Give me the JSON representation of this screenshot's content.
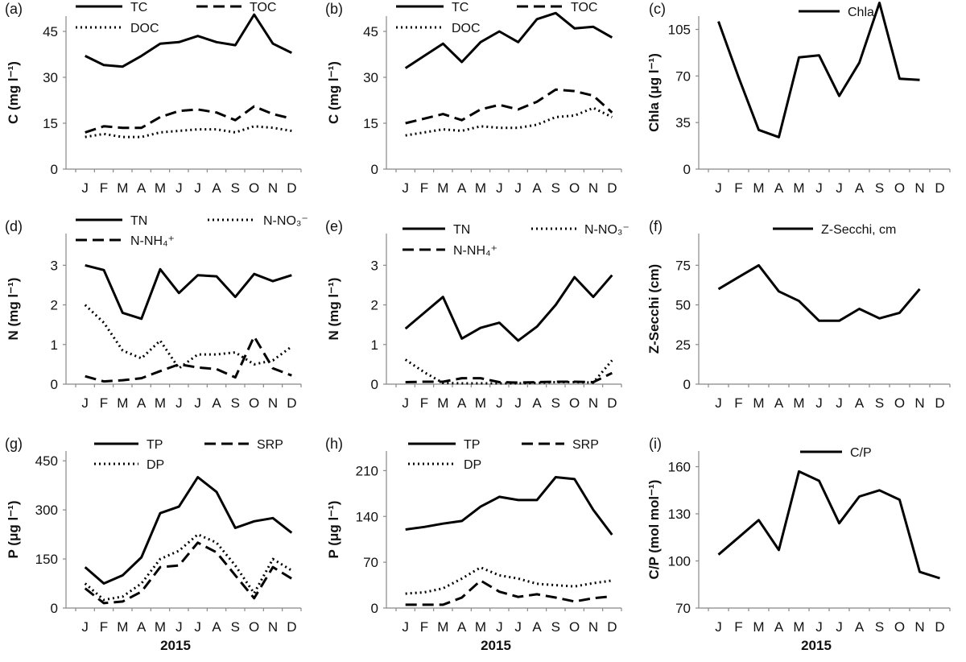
{
  "chart_data": [
    {
      "type": "line",
      "panel": "(a)",
      "ylabel": "C (mg l⁻¹)",
      "xlabel": "",
      "ylim": [
        0,
        50
      ],
      "yticks": [
        0,
        15,
        30,
        45
      ],
      "categories": [
        "J",
        "F",
        "M",
        "A",
        "M",
        "J",
        "J",
        "A",
        "S",
        "O",
        "N",
        "D"
      ],
      "series": [
        {
          "name": "TC",
          "style": "solid",
          "values": [
            37,
            34,
            33.5,
            37,
            41,
            41.5,
            43.5,
            41.5,
            40.5,
            50.5,
            41,
            38
          ]
        },
        {
          "name": "TOC",
          "style": "dashed",
          "values": [
            12,
            14,
            13.5,
            13.5,
            17,
            19,
            19.5,
            18.5,
            16,
            20.5,
            18,
            16.5
          ]
        },
        {
          "name": "DOC",
          "style": "dotted",
          "values": [
            10.5,
            11.5,
            10.5,
            10.5,
            12,
            12.5,
            13,
            13,
            12,
            14,
            13.5,
            12.5
          ]
        }
      ]
    },
    {
      "type": "line",
      "panel": "(b)",
      "ylabel": "C (mg l⁻¹)",
      "xlabel": "",
      "ylim": [
        0,
        50
      ],
      "yticks": [
        0,
        15,
        30,
        45
      ],
      "categories": [
        "J",
        "F",
        "M",
        "A",
        "M",
        "J",
        "J",
        "A",
        "S",
        "O",
        "N",
        "D"
      ],
      "series": [
        {
          "name": "TC",
          "style": "solid",
          "values": [
            33,
            37,
            41,
            35,
            41.5,
            45,
            41.5,
            49,
            51,
            46,
            46.5,
            43
          ]
        },
        {
          "name": "TOC",
          "style": "dashed",
          "values": [
            15,
            16.5,
            18,
            16,
            19.5,
            21,
            19.5,
            22,
            26,
            25.5,
            24,
            18.5
          ]
        },
        {
          "name": "DOC",
          "style": "dotted",
          "values": [
            11,
            12,
            13,
            12.5,
            14,
            13.5,
            13.5,
            14.5,
            17,
            17.5,
            20,
            17
          ]
        }
      ]
    },
    {
      "type": "line",
      "panel": "(c)",
      "ylabel": "Chla (μg l⁻¹)",
      "xlabel": "",
      "ylim": [
        0,
        115
      ],
      "yticks": [
        0,
        35,
        70,
        105
      ],
      "categories": [
        "J",
        "F",
        "M",
        "A",
        "M",
        "J",
        "J",
        "A",
        "S",
        "O",
        "N",
        "D"
      ],
      "series": [
        {
          "name": "Chla",
          "style": "solid",
          "values": [
            111,
            69,
            29.5,
            24,
            84,
            85.5,
            55,
            80,
            125,
            68,
            67,
            null
          ]
        }
      ]
    },
    {
      "type": "line",
      "panel": "(d)",
      "ylabel": "N (mg l⁻¹)",
      "xlabel": "",
      "ylim": [
        0,
        3.8
      ],
      "yticks": [
        0,
        1,
        2,
        3
      ],
      "categories": [
        "J",
        "F",
        "M",
        "A",
        "M",
        "J",
        "J",
        "A",
        "S",
        "O",
        "N",
        "D"
      ],
      "series": [
        {
          "name": "TN",
          "style": "solid",
          "values": [
            3,
            2.88,
            1.8,
            1.65,
            2.9,
            2.3,
            2.75,
            2.72,
            2.2,
            2.78,
            2.6,
            2.75
          ]
        },
        {
          "name": "N-NO₃⁻",
          "style": "dotted",
          "values": [
            2.0,
            1.55,
            0.85,
            0.65,
            1.1,
            0.4,
            0.75,
            0.75,
            0.8,
            0.5,
            0.6,
            0.95
          ]
        },
        {
          "name": "N-NH₄⁺",
          "style": "dashed",
          "values": [
            0.2,
            0.07,
            0.1,
            0.15,
            0.33,
            0.5,
            0.42,
            0.38,
            0.17,
            1.2,
            0.4,
            0.22
          ]
        }
      ]
    },
    {
      "type": "line",
      "panel": "(e)",
      "ylabel": "N (mg l⁻¹)",
      "xlabel": "",
      "ylim": [
        0,
        3.8
      ],
      "yticks": [
        0,
        1,
        2,
        3
      ],
      "categories": [
        "J",
        "F",
        "M",
        "A",
        "M",
        "J",
        "J",
        "A",
        "S",
        "O",
        "N",
        "D"
      ],
      "series": [
        {
          "name": "TN",
          "style": "solid",
          "values": [
            1.4,
            1.8,
            2.2,
            1.15,
            1.42,
            1.55,
            1.1,
            1.45,
            2.0,
            2.7,
            2.2,
            2.75
          ]
        },
        {
          "name": "N-NO₃⁻",
          "style": "dotted",
          "values": [
            0.62,
            0.3,
            0.03,
            0.02,
            0.02,
            0.02,
            0.02,
            0.03,
            0.05,
            0.05,
            0.04,
            0.6
          ]
        },
        {
          "name": "N-NH₄⁺",
          "style": "dashed",
          "values": [
            0.05,
            0.06,
            0.06,
            0.15,
            0.15,
            0.05,
            0.04,
            0.05,
            0.06,
            0.06,
            0.05,
            0.28
          ]
        }
      ]
    },
    {
      "type": "line",
      "panel": "(f)",
      "ylabel": "Z-Secchi (cm)",
      "xlabel": "",
      "ylim": [
        0,
        95
      ],
      "yticks": [
        0,
        25,
        50,
        75
      ],
      "categories": [
        "J",
        "F",
        "M",
        "A",
        "M",
        "J",
        "J",
        "A",
        "S",
        "O",
        "N",
        "D"
      ],
      "series": [
        {
          "name": "Z-Secchi, cm",
          "style": "solid",
          "values": [
            60,
            67.5,
            75,
            58.5,
            52.5,
            40,
            40,
            47.5,
            41.5,
            45,
            60,
            null
          ]
        }
      ]
    },
    {
      "type": "line",
      "panel": "(g)",
      "ylabel": "P (μg l⁻¹)",
      "xlabel": "2015",
      "ylim": [
        0,
        480
      ],
      "yticks": [
        0,
        150,
        300,
        450
      ],
      "categories": [
        "J",
        "F",
        "M",
        "A",
        "M",
        "J",
        "J",
        "A",
        "S",
        "O",
        "N",
        "D"
      ],
      "series": [
        {
          "name": "TP",
          "style": "solid",
          "values": [
            125,
            75,
            100,
            155,
            290,
            310,
            400,
            355,
            245,
            265,
            275,
            230
          ]
        },
        {
          "name": "SRP",
          "style": "dashed",
          "values": [
            60,
            15,
            20,
            50,
            125,
            130,
            200,
            170,
            100,
            30,
            125,
            90
          ]
        },
        {
          "name": "DP",
          "style": "dotted",
          "values": [
            75,
            25,
            35,
            75,
            150,
            175,
            225,
            200,
            130,
            45,
            150,
            115
          ]
        }
      ]
    },
    {
      "type": "line",
      "panel": "(h)",
      "ylabel": "P (μg l⁻¹)",
      "xlabel": "2015",
      "ylim": [
        0,
        240
      ],
      "yticks": [
        0,
        70,
        140,
        210
      ],
      "categories": [
        "J",
        "F",
        "M",
        "A",
        "M",
        "J",
        "J",
        "A",
        "S",
        "O",
        "N",
        "D"
      ],
      "series": [
        {
          "name": "TP",
          "style": "solid",
          "values": [
            120,
            124,
            129,
            133,
            155,
            170,
            165,
            165,
            200,
            197,
            150,
            112
          ]
        },
        {
          "name": "SRP",
          "style": "dashed",
          "values": [
            5,
            5,
            5,
            16,
            42,
            25,
            17,
            21,
            16,
            10,
            15,
            18
          ]
        },
        {
          "name": "DP",
          "style": "dotted",
          "values": [
            22,
            24,
            30,
            45,
            62,
            50,
            45,
            37,
            35,
            33,
            38,
            42
          ]
        }
      ]
    },
    {
      "type": "line",
      "panel": "(i)",
      "ylabel": "C/P (mol mol⁻¹)",
      "xlabel": "2015",
      "ylim": [
        70,
        170
      ],
      "yticks": [
        70,
        100,
        130,
        160
      ],
      "categories": [
        "J",
        "F",
        "M",
        "A",
        "M",
        "J",
        "J",
        "A",
        "S",
        "O",
        "N",
        "D"
      ],
      "series": [
        {
          "name": "C/P",
          "style": "solid",
          "values": [
            104,
            115,
            126,
            107,
            157,
            151,
            124,
            141,
            145,
            139,
            93,
            89
          ]
        }
      ]
    }
  ]
}
